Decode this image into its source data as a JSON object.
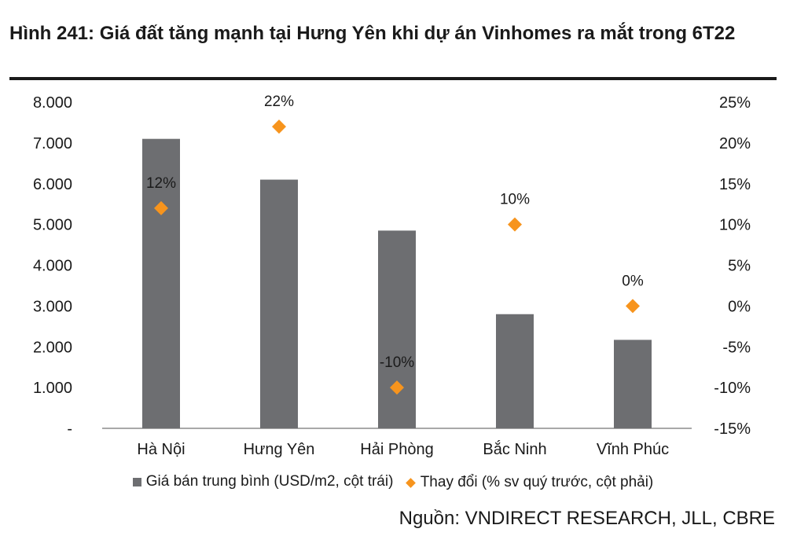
{
  "title": "Hình 241: Giá đất tăng mạnh tại Hưng Yên khi dự án Vinhomes ra mắt trong 6T22",
  "source": "Nguồn: VNDIRECT RESEARCH, JLL, CBRE",
  "colors": {
    "bar": "#6d6e71",
    "marker": "#f7941d",
    "axis": "#8c8c8c"
  },
  "chart_data": {
    "type": "bar",
    "categories": [
      "Hà Nội",
      "Hưng Yên",
      "Hải Phòng",
      "Bắc Ninh",
      "Vĩnh Phúc"
    ],
    "series": [
      {
        "name": "Giá bán trung bình (USD/m2, cột trái)",
        "type": "bar",
        "axis": "left",
        "values": [
          7100,
          6100,
          4850,
          2800,
          2170
        ]
      },
      {
        "name": "Thay đổi (% sv quý trước, cột phải)",
        "type": "scatter",
        "marker": "diamond",
        "axis": "right",
        "values": [
          12,
          22,
          -10,
          10,
          0
        ],
        "labels": [
          "12%",
          "22%",
          "-10%",
          "10%",
          "0%"
        ]
      }
    ],
    "y_left": {
      "range": [
        0,
        8000
      ],
      "ticks": [
        0,
        1000,
        2000,
        3000,
        4000,
        5000,
        6000,
        7000,
        8000
      ],
      "tick_labels": [
        "-",
        "1.000",
        "2.000",
        "3.000",
        "4.000",
        "5.000",
        "6.000",
        "7.000",
        "8.000"
      ]
    },
    "y_right": {
      "range": [
        -15,
        25
      ],
      "ticks": [
        -15,
        -10,
        -5,
        0,
        5,
        10,
        15,
        20,
        25
      ],
      "tick_labels": [
        "-15%",
        "-10%",
        "-5%",
        "0%",
        "5%",
        "10%",
        "15%",
        "20%",
        "25%"
      ]
    },
    "grid": false,
    "legend": "bottom"
  }
}
